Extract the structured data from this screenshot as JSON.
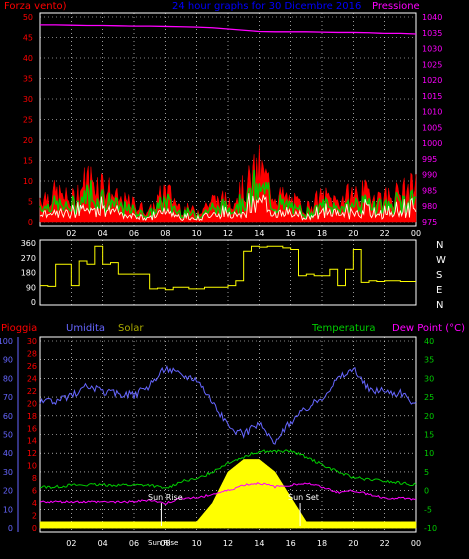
{
  "title": "24 hour graphs for 30 Dicembre 2016",
  "x_ticks": [
    "02",
    "04",
    "06",
    "08",
    "10",
    "12",
    "14",
    "16",
    "18",
    "20",
    "22",
    "00"
  ],
  "top": {
    "left_label": "Forza vento)",
    "right_label": "Pressione",
    "left_ticks": [
      "0",
      "5",
      "10",
      "15",
      "20",
      "25",
      "30",
      "35",
      "40",
      "45",
      "50"
    ],
    "right_ticks": [
      "975",
      "980",
      "985",
      "990",
      "995",
      "1000",
      "1005",
      "1010",
      "1015",
      "1020",
      "1025",
      "1030",
      "1035",
      "1040"
    ]
  },
  "mid": {
    "left_ticks": [
      "0",
      "90",
      "180",
      "270",
      "360"
    ],
    "right_labels": [
      "N",
      "W",
      "S",
      "E",
      "N"
    ]
  },
  "bottom": {
    "header": {
      "pioggia": "Pioggia",
      "umidita": "Umidita",
      "solar": "Solar",
      "temperatura": "Temperatura",
      "dewpoint": "Dew Point (°C)"
    },
    "left_outer_ticks": [
      "0",
      "10",
      "20",
      "30",
      "40",
      "50",
      "60",
      "70",
      "80",
      "90",
      "100"
    ],
    "left_inner_ticks": [
      "0",
      "2",
      "4",
      "6",
      "8",
      "10",
      "12",
      "14",
      "16",
      "18",
      "20",
      "22",
      "24",
      "26",
      "28",
      "30"
    ],
    "right_ticks": [
      "-10",
      "-5",
      "0",
      "5",
      "10",
      "15",
      "20",
      "25",
      "30",
      "35",
      "40"
    ],
    "annotations": {
      "sunrise": "Sun Rise",
      "sunset": "Sun Set",
      "sunrise_time": "Sun Rise"
    }
  },
  "colors": {
    "wind_gust": "#ff0000",
    "wind_avg": "#00cc00",
    "wind_speed": "#ffffe0",
    "pressure": "#ff00ff",
    "direction": "#ffff00",
    "humidity": "#6666ff",
    "temperature": "#00cc00",
    "dewpoint": "#ff00ff",
    "solar": "#ffff00",
    "rain": "#ff0000",
    "title": "#0000ff"
  },
  "chart_data": [
    {
      "type": "line",
      "x_hours": [
        0,
        1,
        2,
        3,
        4,
        5,
        6,
        7,
        8,
        9,
        10,
        11,
        12,
        13,
        14,
        15,
        16,
        17,
        18,
        19,
        20,
        21,
        22,
        23,
        24
      ],
      "series": [
        {
          "name": "Pressione",
          "values": [
            1037.5,
            1037.5,
            1037.4,
            1037.3,
            1037.3,
            1037.2,
            1037.1,
            1037.1,
            1037.0,
            1036.9,
            1036.8,
            1036.6,
            1036.2,
            1035.8,
            1035.4,
            1035.3,
            1035.3,
            1035.3,
            1035.2,
            1035.1,
            1035.1,
            1035.0,
            1034.8,
            1034.8,
            1034.6
          ]
        },
        {
          "name": "Forza vento",
          "values": [
            7,
            8,
            6,
            12,
            11,
            6,
            5,
            3,
            9,
            4,
            3,
            6,
            6,
            9,
            15,
            8,
            6,
            4,
            7,
            6,
            8,
            8,
            7,
            8,
            10
          ]
        }
      ],
      "ylim_left": [
        0,
        50
      ],
      "ylim_right": [
        975,
        1040
      ]
    },
    {
      "type": "line",
      "x_hours": [
        0,
        0.5,
        1,
        1.5,
        2,
        2.5,
        3,
        3.5,
        4,
        4.5,
        5,
        5.5,
        6,
        6.5,
        7,
        7.5,
        8,
        8.5,
        9,
        9.5,
        10,
        10.5,
        11,
        11.5,
        12,
        12.5,
        13,
        13.5,
        14,
        14.5,
        15,
        15.5,
        16,
        16.5,
        17,
        17.5,
        18,
        18.5,
        19,
        19.5,
        20,
        20.5,
        21,
        21.5,
        22,
        22.5,
        23,
        23.5,
        24
      ],
      "series": [
        {
          "name": "direction",
          "values": [
            100,
            95,
            230,
            230,
            100,
            250,
            230,
            340,
            230,
            240,
            170,
            170,
            170,
            170,
            80,
            85,
            75,
            90,
            90,
            80,
            80,
            90,
            90,
            90,
            100,
            130,
            310,
            340,
            335,
            340,
            340,
            330,
            320,
            160,
            170,
            160,
            160,
            200,
            100,
            200,
            320,
            120,
            130,
            125,
            130,
            130,
            125,
            125,
            125
          ]
        }
      ],
      "ylim": [
        0,
        360
      ]
    },
    {
      "type": "line",
      "x_hours": [
        0,
        1,
        2,
        3,
        4,
        5,
        6,
        7,
        8,
        9,
        10,
        11,
        12,
        13,
        14,
        15,
        16,
        17,
        18,
        19,
        20,
        21,
        22,
        23,
        24
      ],
      "series": [
        {
          "name": "Umidita",
          "values": [
            68,
            67,
            71,
            76,
            73,
            72,
            71,
            76,
            86,
            82,
            80,
            68,
            54,
            50,
            56,
            45,
            57,
            64,
            70,
            80,
            85,
            74,
            73,
            72,
            66
          ]
        },
        {
          "name": "Temperatura",
          "values": [
            1,
            1,
            1.5,
            1.5,
            1.5,
            1.5,
            1.5,
            1.5,
            0.5,
            2.5,
            3,
            5,
            7.5,
            9,
            10.5,
            10.5,
            10.5,
            9,
            7,
            5,
            3.5,
            3,
            2.5,
            2,
            1.5
          ]
        },
        {
          "name": "Dew Point",
          "values": [
            -3,
            -3,
            -3,
            -3,
            -3,
            -3,
            -3,
            -2.5,
            -3.5,
            -2,
            -2,
            -1,
            0,
            1.5,
            2,
            1,
            1.5,
            2,
            1,
            -0.5,
            0,
            -1,
            -2,
            -2,
            -2.5
          ]
        },
        {
          "name": "Solar",
          "values": [
            0,
            0,
            0,
            0,
            0,
            0,
            0,
            0,
            0,
            0,
            1,
            4,
            9,
            11,
            11,
            9,
            5,
            1,
            0,
            0,
            0,
            0,
            0,
            0,
            0
          ]
        },
        {
          "name": "Pioggia",
          "values": [
            1,
            1,
            1,
            1,
            1,
            1,
            1,
            1,
            1,
            1,
            1,
            1,
            1,
            1,
            1,
            1,
            1,
            1,
            1,
            1,
            1,
            1,
            1,
            1,
            1
          ]
        }
      ],
      "ylim_left_outer": [
        0,
        100
      ],
      "ylim_left_inner": [
        0,
        30
      ],
      "ylim_right": [
        -10,
        40
      ]
    }
  ]
}
